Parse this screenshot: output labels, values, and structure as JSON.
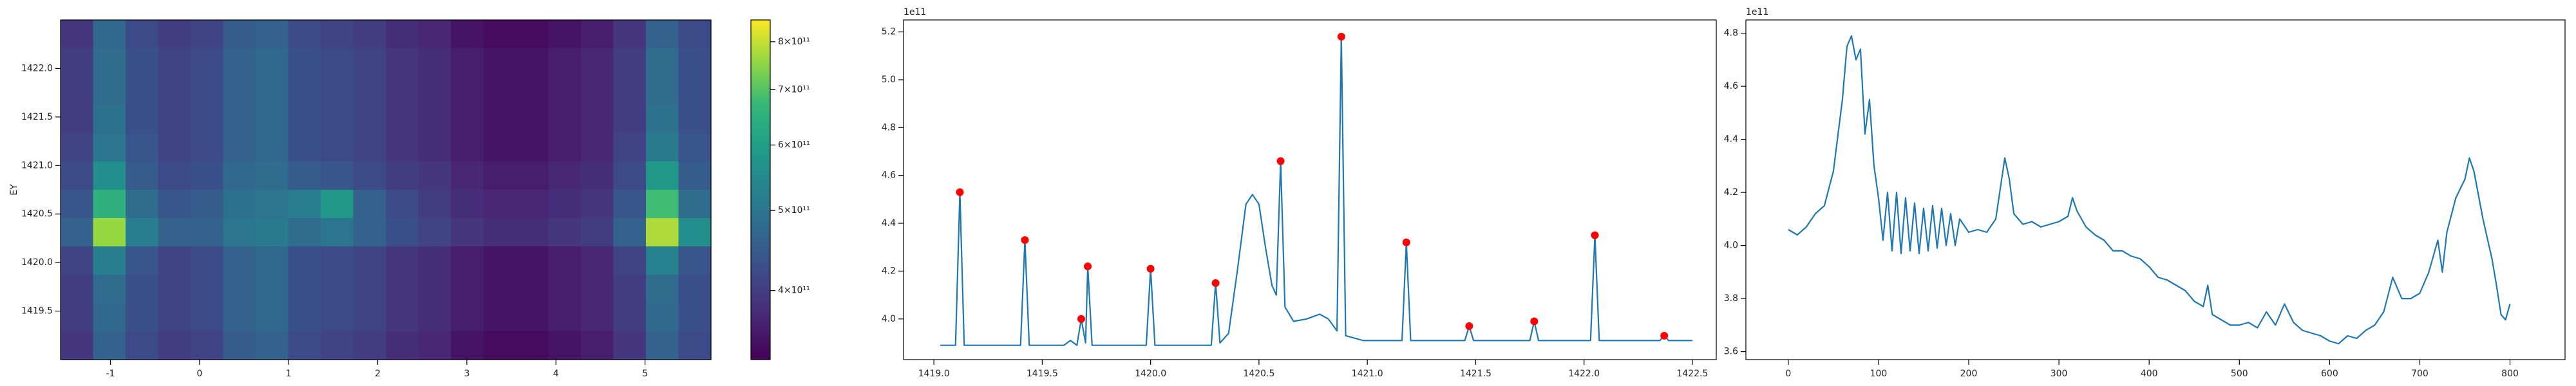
{
  "chart_data": [
    {
      "type": "heatmap",
      "ylabel": "EY",
      "colormap": "viridis",
      "xlim": [
        -1.56,
        5.74
      ],
      "ylim": [
        1419.0,
        1422.5
      ],
      "xticks": [
        -1,
        0,
        1,
        2,
        3,
        4,
        5
      ],
      "yticks": [
        1419.5,
        {
          "value": 1420.0,
          "label": "1420.0"
        },
        1420.5,
        {
          "value": 1421.0,
          "label": "1421.0"
        },
        1421.5,
        {
          "value": 1422.0,
          "label": "1422.0"
        }
      ],
      "z": [
        [
          390000000000.0,
          470000000000.0,
          420000000000.0,
          400000000000.0,
          410000000000.0,
          450000000000.0,
          460000000000.0,
          420000000000.0,
          410000000000.0,
          400000000000.0,
          380000000000.0,
          370000000000.0,
          350000000000.0,
          340000000000.0,
          340000000000.0,
          350000000000.0,
          360000000000.0,
          390000000000.0,
          460000000000.0,
          420000000000.0
        ],
        [
          400000000000.0,
          480000000000.0,
          430000000000.0,
          410000000000.0,
          420000000000.0,
          460000000000.0,
          470000000000.0,
          430000000000.0,
          420000000000.0,
          410000000000.0,
          390000000000.0,
          380000000000.0,
          360000000000.0,
          350000000000.0,
          350000000000.0,
          360000000000.0,
          370000000000.0,
          400000000000.0,
          480000000000.0,
          430000000000.0
        ],
        [
          400000000000.0,
          480000000000.0,
          430000000000.0,
          410000000000.0,
          420000000000.0,
          460000000000.0,
          470000000000.0,
          430000000000.0,
          420000000000.0,
          410000000000.0,
          390000000000.0,
          380000000000.0,
          360000000000.0,
          350000000000.0,
          350000000000.0,
          360000000000.0,
          370000000000.0,
          400000000000.0,
          480000000000.0,
          430000000000.0
        ],
        [
          400000000000.0,
          490000000000.0,
          430000000000.0,
          410000000000.0,
          420000000000.0,
          460000000000.0,
          470000000000.0,
          430000000000.0,
          420000000000.0,
          410000000000.0,
          390000000000.0,
          380000000000.0,
          360000000000.0,
          350000000000.0,
          350000000000.0,
          360000000000.0,
          370000000000.0,
          400000000000.0,
          490000000000.0,
          430000000000.0
        ],
        [
          410000000000.0,
          500000000000.0,
          440000000000.0,
          410000000000.0,
          420000000000.0,
          460000000000.0,
          470000000000.0,
          430000000000.0,
          420000000000.0,
          410000000000.0,
          390000000000.0,
          380000000000.0,
          360000000000.0,
          350000000000.0,
          350000000000.0,
          360000000000.0,
          370000000000.0,
          410000000000.0,
          510000000000.0,
          440000000000.0
        ],
        [
          420000000000.0,
          560000000000.0,
          450000000000.0,
          420000000000.0,
          430000000000.0,
          470000000000.0,
          480000000000.0,
          450000000000.0,
          440000000000.0,
          420000000000.0,
          400000000000.0,
          390000000000.0,
          370000000000.0,
          360000000000.0,
          360000000000.0,
          370000000000.0,
          380000000000.0,
          420000000000.0,
          580000000000.0,
          450000000000.0
        ],
        [
          440000000000.0,
          650000000000.0,
          480000000000.0,
          440000000000.0,
          450000000000.0,
          490000000000.0,
          500000000000.0,
          520000000000.0,
          580000000000.0,
          460000000000.0,
          420000000000.0,
          400000000000.0,
          380000000000.0,
          370000000000.0,
          370000000000.0,
          380000000000.0,
          390000000000.0,
          440000000000.0,
          680000000000.0,
          480000000000.0
        ],
        [
          460000000000.0,
          760000000000.0,
          520000000000.0,
          460000000000.0,
          460000000000.0,
          500000000000.0,
          510000000000.0,
          480000000000.0,
          500000000000.0,
          460000000000.0,
          430000000000.0,
          410000000000.0,
          390000000000.0,
          380000000000.0,
          380000000000.0,
          390000000000.0,
          400000000000.0,
          460000000000.0,
          780000000000.0,
          560000000000.0
        ],
        [
          410000000000.0,
          520000000000.0,
          440000000000.0,
          410000000000.0,
          420000000000.0,
          460000000000.0,
          470000000000.0,
          430000000000.0,
          420000000000.0,
          410000000000.0,
          390000000000.0,
          380000000000.0,
          360000000000.0,
          350000000000.0,
          350000000000.0,
          360000000000.0,
          370000000000.0,
          410000000000.0,
          530000000000.0,
          440000000000.0
        ],
        [
          400000000000.0,
          480000000000.0,
          430000000000.0,
          410000000000.0,
          420000000000.0,
          460000000000.0,
          470000000000.0,
          430000000000.0,
          420000000000.0,
          410000000000.0,
          390000000000.0,
          380000000000.0,
          360000000000.0,
          350000000000.0,
          350000000000.0,
          360000000000.0,
          370000000000.0,
          400000000000.0,
          480000000000.0,
          430000000000.0
        ],
        [
          400000000000.0,
          470000000000.0,
          430000000000.0,
          410000000000.0,
          420000000000.0,
          460000000000.0,
          470000000000.0,
          430000000000.0,
          420000000000.0,
          410000000000.0,
          390000000000.0,
          380000000000.0,
          360000000000.0,
          350000000000.0,
          350000000000.0,
          360000000000.0,
          370000000000.0,
          400000000000.0,
          470000000000.0,
          430000000000.0
        ],
        [
          390000000000.0,
          460000000000.0,
          420000000000.0,
          400000000000.0,
          410000000000.0,
          450000000000.0,
          460000000000.0,
          420000000000.0,
          410000000000.0,
          400000000000.0,
          380000000000.0,
          370000000000.0,
          350000000000.0,
          340000000000.0,
          340000000000.0,
          350000000000.0,
          360000000000.0,
          390000000000.0,
          460000000000.0,
          420000000000.0
        ]
      ],
      "colorbar": {
        "scale": "log",
        "clim": [
          330000000000.0,
          850000000000.0
        ],
        "ticks": [
          {
            "value": 400000000000.0,
            "label": "4×10¹¹"
          },
          {
            "value": 500000000000.0,
            "label": "5×10¹¹"
          },
          {
            "value": 600000000000.0,
            "label": "6×10¹¹"
          },
          {
            "value": 700000000000.0,
            "label": "7×10¹¹"
          },
          {
            "value": 800000000000.0,
            "label": "8×10¹¹"
          }
        ]
      }
    },
    {
      "type": "line",
      "offset_label": "1e11",
      "xlim": [
        1418.86,
        1422.61
      ],
      "ylim": [
        3.83,
        5.25
      ],
      "xticks": [
        {
          "value": 1419.0,
          "label": "1419.0"
        },
        1419.5,
        {
          "value": 1420.0,
          "label": "1420.0"
        },
        1420.5,
        {
          "value": 1421.0,
          "label": "1421.0"
        },
        1421.5,
        {
          "value": 1422.0,
          "label": "1422.0"
        },
        1422.5
      ],
      "yticks": [
        {
          "value": 4.0,
          "label": "4.0"
        },
        4.2,
        4.4,
        4.6,
        4.8,
        {
          "value": 5.0,
          "label": "5.0"
        },
        5.2
      ],
      "series": [
        {
          "style": "line",
          "color": "#1f77b4",
          "x": [
            1419.03,
            1419.1,
            1419.12,
            1419.14,
            1419.4,
            1419.42,
            1419.44,
            1419.6,
            1419.63,
            1419.66,
            1419.68,
            1419.7,
            1419.71,
            1419.73,
            1419.98,
            1420.0,
            1420.02,
            1420.28,
            1420.3,
            1420.32,
            1420.36,
            1420.4,
            1420.44,
            1420.47,
            1420.5,
            1420.53,
            1420.56,
            1420.58,
            1420.6,
            1420.62,
            1420.66,
            1420.72,
            1420.78,
            1420.82,
            1420.86,
            1420.88,
            1420.9,
            1420.98,
            1421.1,
            1421.16,
            1421.18,
            1421.2,
            1421.45,
            1421.47,
            1421.49,
            1421.75,
            1421.77,
            1421.79,
            1422.03,
            1422.05,
            1422.07,
            1422.35,
            1422.37,
            1422.39,
            1422.5
          ],
          "values": [
            3.89,
            3.89,
            4.53,
            3.89,
            3.89,
            4.33,
            3.89,
            3.89,
            3.91,
            3.89,
            4.0,
            3.9,
            4.22,
            3.89,
            3.89,
            4.21,
            3.89,
            3.89,
            4.15,
            3.9,
            3.94,
            4.2,
            4.48,
            4.52,
            4.48,
            4.3,
            4.14,
            4.1,
            4.66,
            4.05,
            3.99,
            4.0,
            4.02,
            4.0,
            3.95,
            5.18,
            3.93,
            3.91,
            3.91,
            3.91,
            4.32,
            3.91,
            3.91,
            3.97,
            3.91,
            3.91,
            3.99,
            3.91,
            3.91,
            4.35,
            3.91,
            3.91,
            3.93,
            3.91,
            3.91
          ]
        },
        {
          "style": "markers",
          "color": "#ff0000",
          "x": [
            1419.12,
            1419.42,
            1419.68,
            1419.71,
            1420.0,
            1420.3,
            1420.6,
            1420.88,
            1421.18,
            1421.47,
            1421.77,
            1422.05,
            1422.37
          ],
          "values": [
            4.53,
            4.33,
            4.0,
            4.22,
            4.21,
            4.15,
            4.66,
            5.18,
            4.32,
            3.97,
            3.99,
            4.35,
            3.93
          ]
        }
      ]
    },
    {
      "type": "line",
      "offset_label": "1e11",
      "xlim": [
        -47,
        861
      ],
      "ylim": [
        3.57,
        4.85
      ],
      "xticks": [
        0,
        100,
        200,
        300,
        400,
        500,
        600,
        700,
        800
      ],
      "yticks": [
        3.6,
        3.8,
        {
          "value": 4.0,
          "label": "4.0"
        },
        4.2,
        4.4,
        4.6,
        4.8
      ],
      "series": [
        {
          "style": "line",
          "color": "#1f77b4",
          "x": [
            0,
            10,
            20,
            30,
            40,
            50,
            60,
            65,
            70,
            75,
            80,
            85,
            90,
            95,
            100,
            105,
            110,
            115,
            120,
            125,
            130,
            135,
            140,
            145,
            150,
            155,
            160,
            165,
            170,
            175,
            180,
            185,
            190,
            200,
            210,
            220,
            230,
            240,
            245,
            250,
            260,
            270,
            280,
            290,
            300,
            310,
            315,
            320,
            330,
            340,
            350,
            360,
            370,
            380,
            390,
            400,
            410,
            420,
            430,
            440,
            450,
            460,
            465,
            470,
            480,
            490,
            500,
            510,
            520,
            530,
            540,
            550,
            560,
            570,
            580,
            590,
            600,
            610,
            620,
            630,
            640,
            650,
            660,
            670,
            680,
            690,
            700,
            710,
            720,
            725,
            730,
            740,
            750,
            755,
            760,
            770,
            780,
            785,
            790,
            795,
            800
          ],
          "values": [
            4.06,
            4.04,
            4.07,
            4.12,
            4.15,
            4.28,
            4.55,
            4.75,
            4.79,
            4.7,
            4.74,
            4.42,
            4.55,
            4.3,
            4.18,
            4.02,
            4.2,
            3.98,
            4.2,
            3.97,
            4.18,
            3.98,
            4.16,
            3.97,
            4.14,
            3.98,
            4.15,
            3.99,
            4.14,
            4.0,
            4.12,
            4.0,
            4.1,
            4.05,
            4.06,
            4.05,
            4.1,
            4.33,
            4.25,
            4.12,
            4.08,
            4.09,
            4.07,
            4.08,
            4.09,
            4.11,
            4.18,
            4.13,
            4.07,
            4.04,
            4.02,
            3.98,
            3.98,
            3.96,
            3.95,
            3.92,
            3.88,
            3.87,
            3.85,
            3.83,
            3.79,
            3.77,
            3.85,
            3.74,
            3.72,
            3.7,
            3.7,
            3.71,
            3.69,
            3.75,
            3.7,
            3.78,
            3.71,
            3.68,
            3.67,
            3.66,
            3.64,
            3.63,
            3.66,
            3.65,
            3.68,
            3.7,
            3.75,
            3.88,
            3.8,
            3.8,
            3.82,
            3.9,
            4.02,
            3.9,
            4.05,
            4.18,
            4.25,
            4.33,
            4.28,
            4.1,
            3.95,
            3.85,
            3.74,
            3.72,
            3.78
          ]
        }
      ]
    }
  ]
}
